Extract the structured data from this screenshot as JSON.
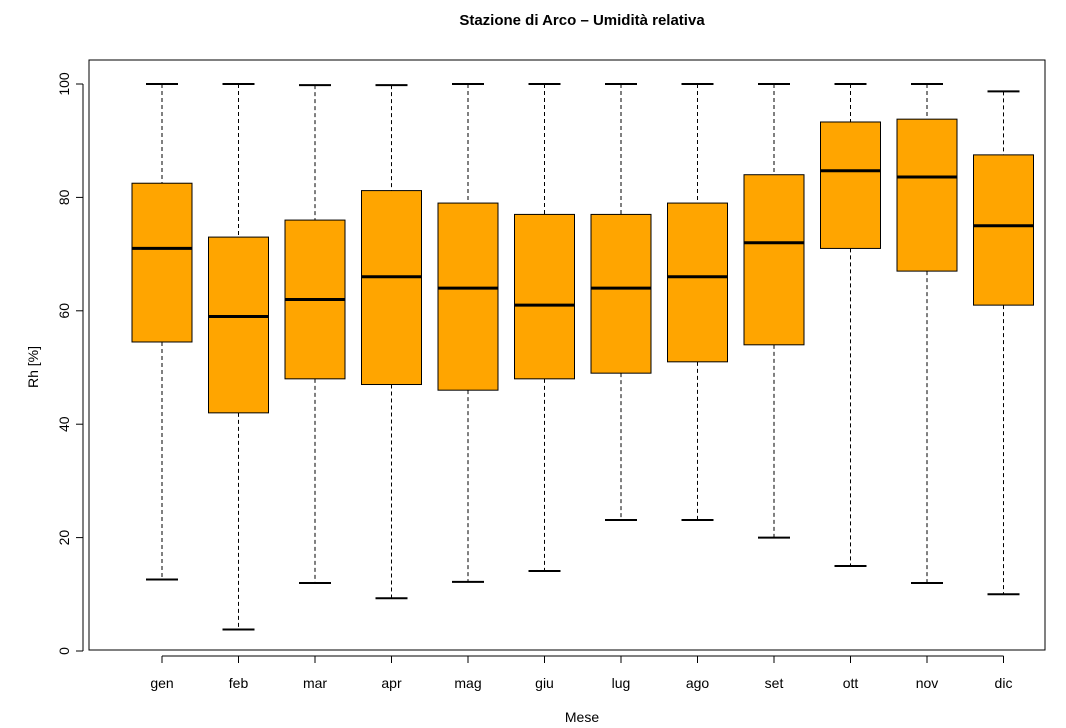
{
  "chart_data": {
    "type": "boxplot",
    "title": "Stazione di Arco – Umidità relativa",
    "xlabel": "Mese",
    "ylabel": "Rh [%]",
    "ylim": [
      0,
      100
    ],
    "yticks": [
      0,
      20,
      40,
      60,
      80,
      100
    ],
    "grid": false,
    "box_color": "#FFA500",
    "categories": [
      "gen",
      "feb",
      "mar",
      "apr",
      "mag",
      "giu",
      "lug",
      "ago",
      "set",
      "ott",
      "nov",
      "dic"
    ],
    "boxes": [
      {
        "min": 12.6,
        "q1": 54.5,
        "median": 71.0,
        "q3": 82.5,
        "max": 100.0
      },
      {
        "min": 3.8,
        "q1": 42.0,
        "median": 59.0,
        "q3": 73.0,
        "max": 100.0
      },
      {
        "min": 12.0,
        "q1": 48.0,
        "median": 62.0,
        "q3": 76.0,
        "max": 99.8
      },
      {
        "min": 9.3,
        "q1": 47.0,
        "median": 66.0,
        "q3": 81.2,
        "max": 99.8
      },
      {
        "min": 12.2,
        "q1": 46.0,
        "median": 64.0,
        "q3": 79.0,
        "max": 100.0
      },
      {
        "min": 14.1,
        "q1": 48.0,
        "median": 61.0,
        "q3": 77.0,
        "max": 100.0
      },
      {
        "min": 23.1,
        "q1": 49.0,
        "median": 64.0,
        "q3": 77.0,
        "max": 100.0
      },
      {
        "min": 23.1,
        "q1": 51.0,
        "median": 66.0,
        "q3": 79.0,
        "max": 100.0
      },
      {
        "min": 20.0,
        "q1": 54.0,
        "median": 72.0,
        "q3": 84.0,
        "max": 100.0
      },
      {
        "min": 15.0,
        "q1": 71.0,
        "median": 84.7,
        "q3": 93.3,
        "max": 100.0
      },
      {
        "min": 12.0,
        "q1": 67.0,
        "median": 83.6,
        "q3": 93.8,
        "max": 100.0
      },
      {
        "min": 10.0,
        "q1": 61.0,
        "median": 75.0,
        "q3": 87.5,
        "max": 98.7
      }
    ]
  }
}
